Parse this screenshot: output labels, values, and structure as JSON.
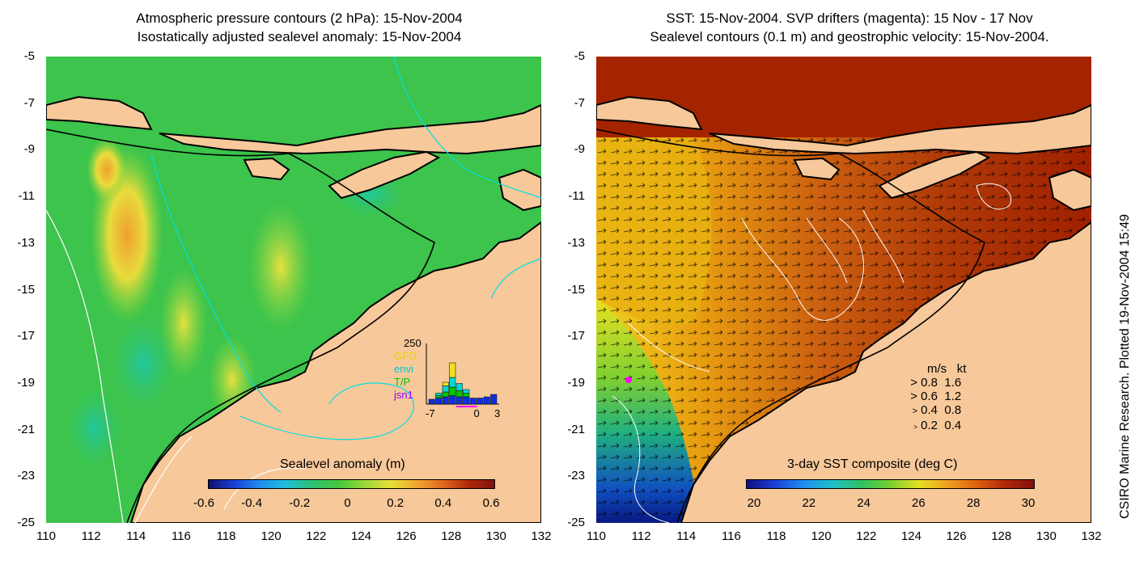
{
  "left_panel": {
    "title_line1": "Atmospheric pressure contours (2 hPa): 15-Nov-2004",
    "title_line2": "Isostatically adjusted sealevel anomaly: 15-Nov-2004",
    "colorbar": {
      "label": "Sealevel anomaly (m)",
      "ticks": [
        "-0.6",
        "-0.4",
        "-0.2",
        "0",
        "0.2",
        "0.4",
        "0.6"
      ]
    },
    "inset": {
      "ymax_label": "250",
      "legend": [
        "GFO",
        "envi",
        "T/P",
        "jsn1"
      ],
      "legend_colors": [
        "#e6d200",
        "#00c8c8",
        "#00c800",
        "#8a00ff"
      ],
      "x_ticks": [
        "-7",
        "0",
        "3"
      ],
      "bars": [
        {
          "day": -7,
          "jsn1": 20,
          "tp": 0,
          "envi": 0,
          "gfo": 0
        },
        {
          "day": -6,
          "jsn1": 25,
          "tp": 10,
          "envi": 10,
          "gfo": 0
        },
        {
          "day": -5,
          "jsn1": 30,
          "tp": 20,
          "envi": 25,
          "gfo": 15
        },
        {
          "day": -4,
          "jsn1": 35,
          "tp": 35,
          "envi": 40,
          "gfo": 60
        },
        {
          "day": -3,
          "jsn1": 30,
          "tp": 25,
          "envi": 30,
          "gfo": 0
        },
        {
          "day": -2,
          "jsn1": 30,
          "tp": 15,
          "envi": 15,
          "gfo": 0
        },
        {
          "day": -1,
          "jsn1": 25,
          "tp": 0,
          "envi": 0,
          "gfo": 0
        },
        {
          "day": 0,
          "jsn1": 25,
          "tp": 0,
          "envi": 0,
          "gfo": 0
        },
        {
          "day": 1,
          "jsn1": 30,
          "tp": 0,
          "envi": 0,
          "gfo": 0
        },
        {
          "day": 2,
          "jsn1": 40,
          "tp": 0,
          "envi": 0,
          "gfo": 0
        }
      ]
    }
  },
  "right_panel": {
    "title_line1": "SST: 15-Nov-2004. SVP drifters (magenta): 15 Nov - 17 Nov",
    "title_line2": "Sealevel contours (0.1 m) and geostrophic velocity: 15-Nov-2004.",
    "colorbar": {
      "label": "3-day SST composite (deg C)",
      "ticks": [
        "20",
        "22",
        "24",
        "26",
        "28",
        "30"
      ]
    },
    "velocity_legend": {
      "header_ms": "m/s",
      "header_kt": "kt",
      "rows": [
        {
          "ms": "0.8",
          "kt": "1.6"
        },
        {
          "ms": "0.6",
          "kt": "1.2"
        },
        {
          "ms": "0.4",
          "kt": "0.8"
        },
        {
          "ms": "0.2",
          "kt": "0.4"
        }
      ]
    }
  },
  "axes": {
    "lat_ticks": [
      "-5",
      "-7",
      "-9",
      "-11",
      "-13",
      "-15",
      "-17",
      "-19",
      "-21",
      "-23",
      "-25"
    ],
    "lon_ticks": [
      "110",
      "112",
      "114",
      "116",
      "118",
      "120",
      "122",
      "124",
      "126",
      "128",
      "130",
      "132"
    ]
  },
  "credit": "CSIRO Marine Research. Plotted 19-Nov-2004 15:49",
  "colors": {
    "land": "#f7c89a",
    "sea_green": "#2ec24a",
    "sst_hot": "#a42000",
    "coastline": "#000000",
    "contour_white": "#ffffff",
    "contour_cyan": "#00e0e0",
    "drifter": "#ff00ff"
  }
}
